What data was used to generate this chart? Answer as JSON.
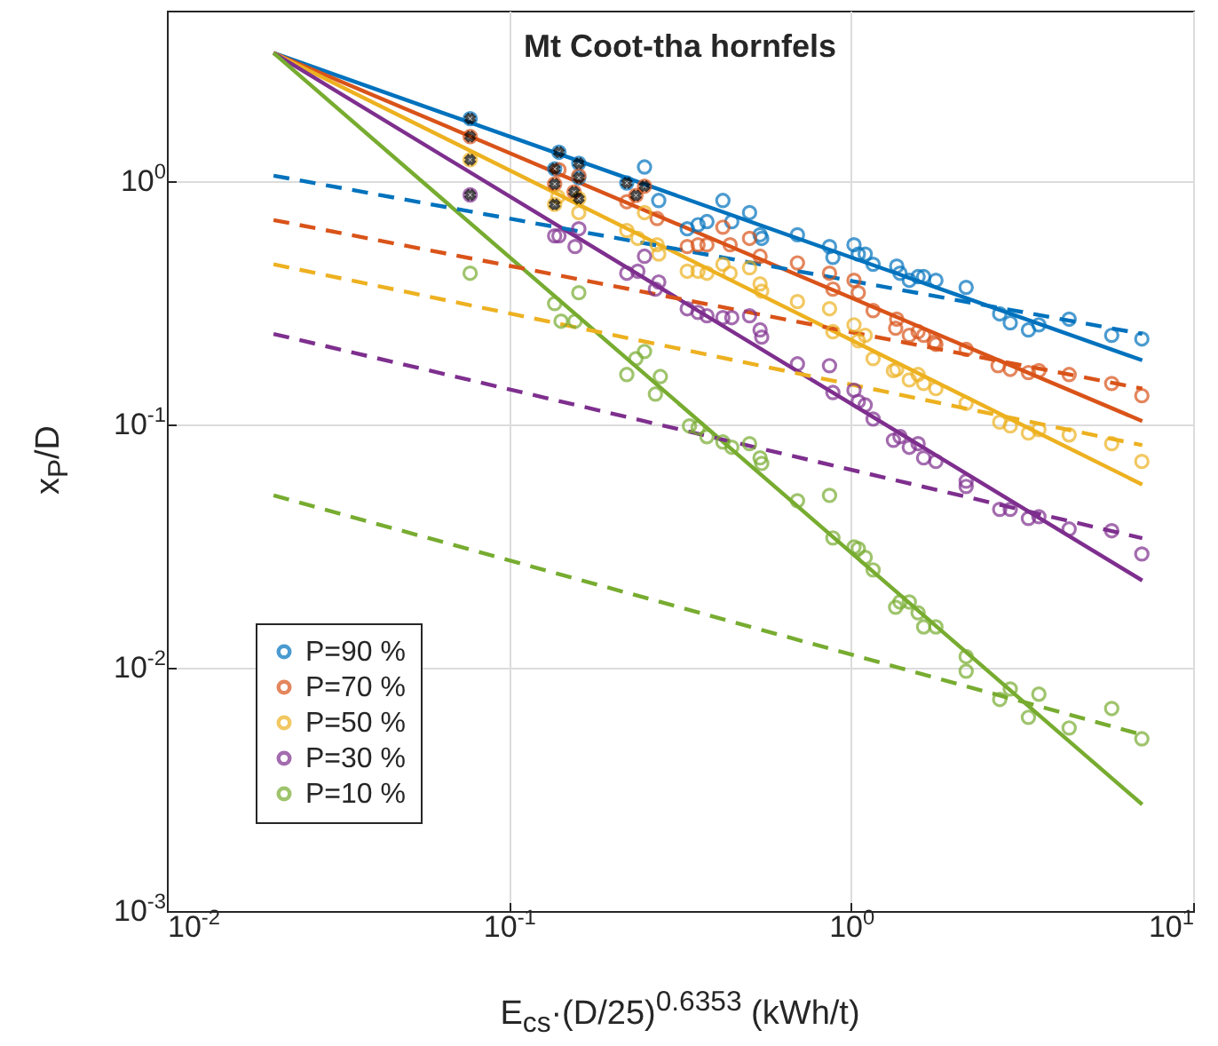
{
  "chart_data": {
    "type": "scatter",
    "title": "Mt Coot-tha hornfels",
    "xlabel": "E$_{cs}$·(D/25)$^{0.6353}$ (kWh/t)",
    "ylabel": "x$_{P}$/D",
    "log": "xy",
    "grid": true,
    "legend": "bottom left",
    "xlim": [
      0.01,
      10
    ],
    "ylim": [
      0.001,
      5
    ],
    "xticks": [
      {
        "value": 0.01,
        "label": "10$^{-2}$"
      },
      {
        "value": 0.1,
        "label": "10$^{-1}$"
      },
      {
        "value": 1,
        "label": "10$^{0}$"
      },
      {
        "value": 10,
        "label": "10$^{1}$"
      }
    ],
    "yticks": [
      {
        "value": 0.001,
        "label": "10$^{-3}$"
      },
      {
        "value": 0.01,
        "label": "10$^{-2}$"
      },
      {
        "value": 0.1,
        "label": "10$^{-1}$"
      },
      {
        "value": 1,
        "label": "10$^{0}$"
      }
    ],
    "series": [
      {
        "type": "line",
        "color": "#0072bd",
        "line_style": "solid",
        "marker": "none",
        "x": [
          0.0205,
          7.1
        ],
        "values": [
          3.35,
          0.183
        ]
      },
      {
        "type": "line",
        "color": "#d95319",
        "line_style": "solid",
        "marker": "none",
        "x": [
          0.0205,
          7.1
        ],
        "values": [
          3.35,
          0.103
        ]
      },
      {
        "type": "line",
        "color": "#edb120",
        "line_style": "solid",
        "marker": "none",
        "x": [
          0.0205,
          7.1
        ],
        "values": [
          3.35,
          0.0565
        ]
      },
      {
        "type": "line",
        "color": "#7e2f8e",
        "line_style": "solid",
        "marker": "none",
        "x": [
          0.0205,
          7.1
        ],
        "values": [
          3.35,
          0.0228
        ]
      },
      {
        "type": "line",
        "color": "#77ac30",
        "line_style": "solid",
        "marker": "none",
        "x": [
          0.0205,
          7.1
        ],
        "values": [
          3.35,
          0.00274
        ]
      },
      {
        "type": "line",
        "color": "#0072bd",
        "line_style": "dashed",
        "marker": "none",
        "x": [
          0.0205,
          7.1
        ],
        "values": [
          1.05,
          0.235
        ]
      },
      {
        "type": "line",
        "color": "#d95319",
        "line_style": "dashed",
        "marker": "none",
        "x": [
          0.0205,
          7.1
        ],
        "values": [
          0.69,
          0.14
        ]
      },
      {
        "type": "line",
        "color": "#edb120",
        "line_style": "dashed",
        "marker": "none",
        "x": [
          0.0205,
          7.1
        ],
        "values": [
          0.454,
          0.082
        ]
      },
      {
        "type": "line",
        "color": "#7e2f8e",
        "line_style": "dashed",
        "marker": "none",
        "x": [
          0.0205,
          7.1
        ],
        "values": [
          0.235,
          0.034
        ]
      },
      {
        "type": "line",
        "color": "#77ac30",
        "line_style": "dashed",
        "marker": "none",
        "x": [
          0.0205,
          7.1
        ],
        "values": [
          0.051,
          0.0053
        ]
      },
      {
        "name": "P=90 %",
        "color": "#0072bd",
        "marker": "circle",
        "x": [
          0.077,
          0.14,
          0.136,
          0.16,
          0.16,
          0.249,
          0.221,
          0.274,
          0.332,
          0.357,
          0.379,
          0.422,
          0.505,
          0.448,
          0.542,
          0.548,
          0.697,
          0.865,
          0.885,
          1.02,
          1.05,
          1.1,
          1.16,
          1.36,
          1.39,
          1.48,
          1.57,
          1.63,
          1.77,
          2.17,
          2.72,
          2.92,
          3.3,
          3.54,
          4.34,
          5.78,
          7.08
        ],
        "values": [
          1.8,
          1.31,
          1.12,
          1.18,
          1.03,
          1.14,
          0.98,
          0.83,
          0.635,
          0.66,
          0.68,
          0.83,
          0.74,
          0.68,
          0.6,
          0.58,
          0.6,
          0.537,
          0.485,
          0.546,
          0.5,
          0.5,
          0.454,
          0.446,
          0.417,
          0.39,
          0.404,
          0.404,
          0.39,
          0.365,
          0.284,
          0.261,
          0.244,
          0.256,
          0.27,
          0.232,
          0.224
        ]
      },
      {
        "name": "P=70 %",
        "color": "#d95319",
        "marker": "circle",
        "x": [
          0.077,
          0.136,
          0.14,
          0.155,
          0.16,
          0.221,
          0.249,
          0.235,
          0.271,
          0.332,
          0.357,
          0.379,
          0.422,
          0.443,
          0.505,
          0.542,
          0.697,
          0.865,
          0.885,
          1.02,
          1.05,
          1.16,
          1.36,
          1.35,
          1.48,
          1.57,
          1.63,
          1.75,
          1.77,
          2.17,
          2.69,
          2.92,
          3.3,
          3.54,
          4.34,
          5.78,
          7.08
        ],
        "values": [
          1.52,
          0.97,
          1.11,
          0.9,
          1.05,
          0.82,
          0.95,
          0.87,
          0.7,
          0.537,
          0.546,
          0.546,
          0.645,
          0.546,
          0.58,
          0.49,
          0.46,
          0.417,
          0.359,
          0.39,
          0.347,
          0.293,
          0.27,
          0.248,
          0.232,
          0.24,
          0.232,
          0.217,
          0.213,
          0.203,
          0.174,
          0.168,
          0.163,
          0.166,
          0.16,
          0.147,
          0.131
        ]
      },
      {
        "name": "P=50 %",
        "color": "#edb120",
        "marker": "circle",
        "x": [
          0.077,
          0.136,
          0.139,
          0.16,
          0.16,
          0.221,
          0.238,
          0.271,
          0.274,
          0.249,
          0.332,
          0.357,
          0.379,
          0.422,
          0.443,
          0.505,
          0.542,
          0.548,
          0.697,
          0.865,
          0.885,
          1.02,
          1.05,
          1.1,
          1.16,
          1.33,
          1.36,
          1.48,
          1.57,
          1.63,
          1.77,
          2.17,
          2.72,
          2.92,
          3.3,
          3.54,
          4.34,
          5.78,
          7.08
        ],
        "values": [
          1.22,
          0.8,
          0.86,
          0.845,
          0.74,
          0.625,
          0.58,
          0.546,
          0.5,
          0.74,
          0.425,
          0.425,
          0.417,
          0.454,
          0.417,
          0.439,
          0.377,
          0.352,
          0.319,
          0.298,
          0.24,
          0.256,
          0.22,
          0.232,
          0.186,
          0.166,
          0.168,
          0.152,
          0.16,
          0.147,
          0.14,
          0.122,
          0.102,
          0.0984,
          0.092,
          0.095,
          0.0904,
          0.0832,
          0.0703
        ]
      },
      {
        "name": "P=30 %",
        "color": "#7e2f8e",
        "marker": "circle",
        "x": [
          0.077,
          0.136,
          0.14,
          0.16,
          0.156,
          0.221,
          0.238,
          0.249,
          0.274,
          0.268,
          0.332,
          0.357,
          0.379,
          0.422,
          0.448,
          0.505,
          0.542,
          0.548,
          0.697,
          0.865,
          0.885,
          1.02,
          1.05,
          1.1,
          1.16,
          1.33,
          1.39,
          1.48,
          1.57,
          1.63,
          1.77,
          2.17,
          2.17,
          2.72,
          2.92,
          3.3,
          3.54,
          4.34,
          5.78,
          7.08
        ],
        "values": [
          0.875,
          0.594,
          0.594,
          0.635,
          0.537,
          0.417,
          0.425,
          0.49,
          0.384,
          0.359,
          0.298,
          0.288,
          0.279,
          0.274,
          0.274,
          0.279,
          0.244,
          0.228,
          0.177,
          0.174,
          0.135,
          0.138,
          0.124,
          0.12,
          0.105,
          0.0859,
          0.0889,
          0.0804,
          0.0832,
          0.0727,
          0.0703,
          0.0584,
          0.0555,
          0.0447,
          0.0447,
          0.041,
          0.0417,
          0.0371,
          0.0365,
          0.0293
        ]
      },
      {
        "name": "P=10 %",
        "color": "#77ac30",
        "marker": "circle",
        "x": [
          0.077,
          0.136,
          0.142,
          0.16,
          0.156,
          0.221,
          0.235,
          0.249,
          0.277,
          0.268,
          0.337,
          0.357,
          0.379,
          0.422,
          0.448,
          0.505,
          0.542,
          0.548,
          0.697,
          0.865,
          0.885,
          1.02,
          1.05,
          1.1,
          1.16,
          1.39,
          1.35,
          1.48,
          1.57,
          1.63,
          1.77,
          2.17,
          2.17,
          2.72,
          2.92,
          3.3,
          3.54,
          4.34,
          5.78,
          7.08
        ],
        "values": [
          0.417,
          0.313,
          0.265,
          0.347,
          0.265,
          0.16,
          0.186,
          0.199,
          0.157,
          0.133,
          0.0984,
          0.0967,
          0.0889,
          0.0845,
          0.0804,
          0.0832,
          0.0727,
          0.069,
          0.0485,
          0.051,
          0.0341,
          0.0313,
          0.0308,
          0.0284,
          0.0252,
          0.0186,
          0.0177,
          0.0186,
          0.0168,
          0.0147,
          0.0147,
          0.0111,
          0.00967,
          0.0074,
          0.00817,
          0.00625,
          0.00778,
          0.00565,
          0.00679,
          0.0051
        ]
      },
      {
        "color": "#000000",
        "marker": "cross",
        "x": [
          0.077,
          0.077,
          0.077,
          0.077,
          0.14,
          0.136,
          0.16,
          0.16,
          0.136,
          0.155,
          0.16,
          0.136,
          0.221,
          0.249,
          0.235
        ],
        "values": [
          1.8,
          1.52,
          1.22,
          0.875,
          1.31,
          1.12,
          1.18,
          1.03,
          0.97,
          0.9,
          0.845,
          0.8,
          0.98,
          0.95,
          0.87
        ]
      }
    ]
  }
}
